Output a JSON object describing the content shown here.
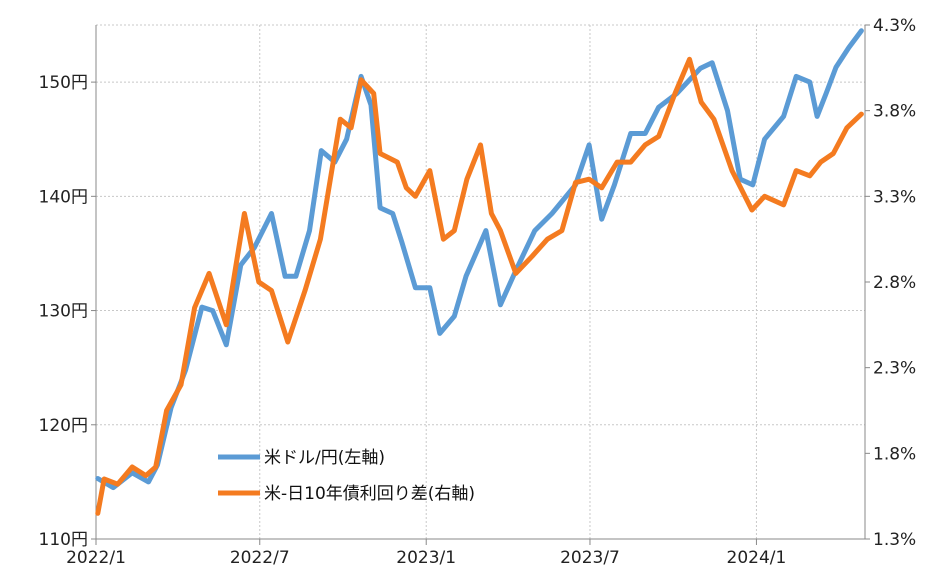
{
  "chart_data": {
    "type": "line",
    "title": "",
    "x_axis": {
      "range": [
        "2022-01-01",
        "2024-04-30"
      ],
      "ticks": [
        "2022/1",
        "2022/7",
        "2023/1",
        "2023/7",
        "2024/1"
      ],
      "tick_dates": [
        "2022-01-01",
        "2022-07-01",
        "2023-01-01",
        "2023-07-01",
        "2024-01-01"
      ]
    },
    "y_left": {
      "range": [
        110,
        155
      ],
      "ticks": [
        110,
        120,
        130,
        140,
        150
      ],
      "tick_labels": [
        "110円",
        "120円",
        "130円",
        "140円",
        "150円"
      ]
    },
    "y_right": {
      "range": [
        1.3,
        4.3
      ],
      "ticks": [
        1.3,
        1.8,
        2.3,
        2.8,
        3.3,
        3.8,
        4.3
      ],
      "tick_labels": [
        "1.3%",
        "1.8%",
        "2.3%",
        "2.8%",
        "3.3%",
        "3.8%",
        "4.3%"
      ]
    },
    "grid": true,
    "legend_position": "bottom-left",
    "series": [
      {
        "name": "米ドル/円(左軸)",
        "axis": "left",
        "color": "#5b9bd5",
        "points": [
          [
            "2022-01-03",
            115.3
          ],
          [
            "2022-01-20",
            114.5
          ],
          [
            "2022-02-10",
            115.8
          ],
          [
            "2022-02-28",
            115.0
          ],
          [
            "2022-03-10",
            116.5
          ],
          [
            "2022-03-25",
            121.5
          ],
          [
            "2022-04-10",
            124.8
          ],
          [
            "2022-04-28",
            130.3
          ],
          [
            "2022-05-10",
            130.0
          ],
          [
            "2022-05-25",
            127.0
          ],
          [
            "2022-06-10",
            134.0
          ],
          [
            "2022-06-25",
            135.5
          ],
          [
            "2022-07-14",
            138.5
          ],
          [
            "2022-07-29",
            133.0
          ],
          [
            "2022-08-10",
            133.0
          ],
          [
            "2022-08-25",
            137.0
          ],
          [
            "2022-09-07",
            144.0
          ],
          [
            "2022-09-22",
            143.0
          ],
          [
            "2022-10-05",
            145.0
          ],
          [
            "2022-10-21",
            150.5
          ],
          [
            "2022-11-01",
            148.0
          ],
          [
            "2022-11-11",
            139.0
          ],
          [
            "2022-11-25",
            138.5
          ],
          [
            "2022-12-05",
            136.0
          ],
          [
            "2022-12-20",
            132.0
          ],
          [
            "2023-01-05",
            132.0
          ],
          [
            "2023-01-16",
            128.0
          ],
          [
            "2023-02-01",
            129.5
          ],
          [
            "2023-02-14",
            133.0
          ],
          [
            "2023-03-08",
            137.0
          ],
          [
            "2023-03-24",
            130.5
          ],
          [
            "2023-04-10",
            133.5
          ],
          [
            "2023-05-01",
            137.0
          ],
          [
            "2023-05-20",
            138.5
          ],
          [
            "2023-06-15",
            141.0
          ],
          [
            "2023-06-30",
            144.5
          ],
          [
            "2023-07-14",
            138.0
          ],
          [
            "2023-07-28",
            141.0
          ],
          [
            "2023-08-15",
            145.5
          ],
          [
            "2023-08-31",
            145.5
          ],
          [
            "2023-09-15",
            147.8
          ],
          [
            "2023-10-05",
            149.0
          ],
          [
            "2023-10-31",
            151.2
          ],
          [
            "2023-11-13",
            151.7
          ],
          [
            "2023-11-30",
            147.5
          ],
          [
            "2023-12-14",
            141.5
          ],
          [
            "2023-12-28",
            141.0
          ],
          [
            "2024-01-10",
            145.0
          ],
          [
            "2024-01-31",
            147.0
          ],
          [
            "2024-02-14",
            150.5
          ],
          [
            "2024-02-29",
            150.0
          ],
          [
            "2024-03-08",
            147.0
          ],
          [
            "2024-03-18",
            149.0
          ],
          [
            "2024-03-29",
            151.3
          ],
          [
            "2024-04-12",
            153.0
          ],
          [
            "2024-04-26",
            154.5
          ]
        ]
      },
      {
        "name": "米-日10年債利回り差(右軸)",
        "axis": "right",
        "color": "#f47b20",
        "points": [
          [
            "2022-01-03",
            1.45
          ],
          [
            "2022-01-10",
            1.65
          ],
          [
            "2022-01-25",
            1.62
          ],
          [
            "2022-02-10",
            1.72
          ],
          [
            "2022-02-25",
            1.67
          ],
          [
            "2022-03-08",
            1.72
          ],
          [
            "2022-03-20",
            2.05
          ],
          [
            "2022-04-05",
            2.2
          ],
          [
            "2022-04-20",
            2.65
          ],
          [
            "2022-05-06",
            2.85
          ],
          [
            "2022-05-25",
            2.55
          ],
          [
            "2022-06-14",
            3.2
          ],
          [
            "2022-06-30",
            2.8
          ],
          [
            "2022-07-14",
            2.75
          ],
          [
            "2022-08-01",
            2.45
          ],
          [
            "2022-08-20",
            2.75
          ],
          [
            "2022-09-06",
            3.05
          ],
          [
            "2022-09-28",
            3.75
          ],
          [
            "2022-10-10",
            3.7
          ],
          [
            "2022-10-21",
            3.98
          ],
          [
            "2022-11-04",
            3.9
          ],
          [
            "2022-11-11",
            3.55
          ],
          [
            "2022-11-30",
            3.5
          ],
          [
            "2022-12-10",
            3.35
          ],
          [
            "2022-12-20",
            3.3
          ],
          [
            "2023-01-05",
            3.45
          ],
          [
            "2023-01-20",
            3.05
          ],
          [
            "2023-02-01",
            3.1
          ],
          [
            "2023-02-15",
            3.4
          ],
          [
            "2023-03-02",
            3.6
          ],
          [
            "2023-03-14",
            3.2
          ],
          [
            "2023-03-24",
            3.1
          ],
          [
            "2023-04-10",
            2.85
          ],
          [
            "2023-04-28",
            2.95
          ],
          [
            "2023-05-15",
            3.05
          ],
          [
            "2023-05-31",
            3.1
          ],
          [
            "2023-06-15",
            3.38
          ],
          [
            "2023-06-30",
            3.4
          ],
          [
            "2023-07-14",
            3.35
          ],
          [
            "2023-07-31",
            3.5
          ],
          [
            "2023-08-15",
            3.5
          ],
          [
            "2023-08-31",
            3.6
          ],
          [
            "2023-09-15",
            3.65
          ],
          [
            "2023-10-03",
            3.9
          ],
          [
            "2023-10-19",
            4.1
          ],
          [
            "2023-11-01",
            3.85
          ],
          [
            "2023-11-15",
            3.75
          ],
          [
            "2023-12-05",
            3.45
          ],
          [
            "2023-12-27",
            3.22
          ],
          [
            "2024-01-10",
            3.3
          ],
          [
            "2024-01-31",
            3.25
          ],
          [
            "2024-02-14",
            3.45
          ],
          [
            "2024-02-29",
            3.42
          ],
          [
            "2024-03-12",
            3.5
          ],
          [
            "2024-03-26",
            3.55
          ],
          [
            "2024-04-10",
            3.7
          ],
          [
            "2024-04-26",
            3.78
          ]
        ]
      }
    ]
  },
  "legend": [
    {
      "label": "米ドル/円(左軸)",
      "color": "#5b9bd5"
    },
    {
      "label": "米-日10年債利回り差(右軸)",
      "color": "#f47b20"
    }
  ]
}
